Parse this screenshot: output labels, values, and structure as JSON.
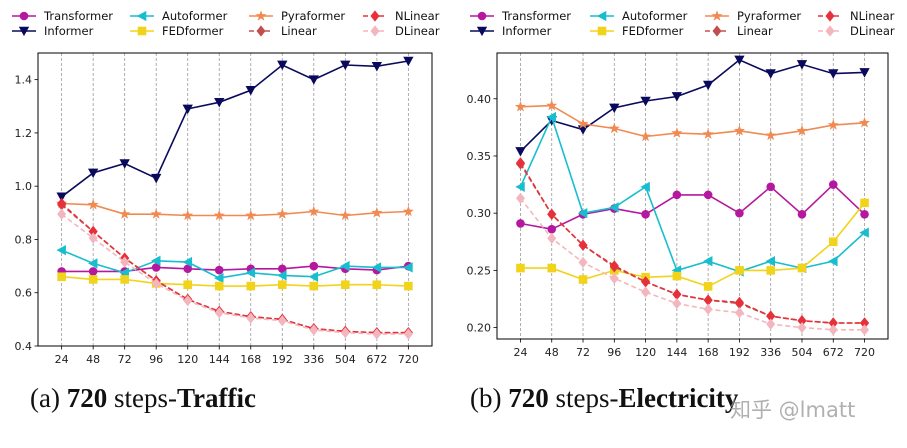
{
  "legend_order": [
    "Transformer",
    "Autoformer",
    "Pyraformer",
    "NLinear",
    "Informer",
    "FEDformer",
    "Linear",
    "DLinear"
  ],
  "styles": {
    "Transformer": {
      "color": "#b5179e",
      "marker": "circle",
      "dash": false
    },
    "Informer": {
      "color": "#0a0a5c",
      "marker": "tri-down",
      "dash": false
    },
    "Autoformer": {
      "color": "#17becf",
      "marker": "tri-left",
      "dash": false
    },
    "FEDformer": {
      "color": "#f2d31b",
      "marker": "square",
      "dash": false
    },
    "Pyraformer": {
      "color": "#f08a52",
      "marker": "star",
      "dash": false
    },
    "Linear": {
      "color": "#c0504d",
      "marker": "diamond",
      "dash": true
    },
    "NLinear": {
      "color": "#e8303a",
      "marker": "diamond",
      "dash": true
    },
    "DLinear": {
      "color": "#f4b6be",
      "marker": "diamond",
      "dash": true
    }
  },
  "chart_data": [
    {
      "type": "line",
      "title": "Traffic",
      "categories": [
        "24",
        "48",
        "72",
        "96",
        "120",
        "144",
        "168",
        "192",
        "336",
        "504",
        "672",
        "720"
      ],
      "ylim": [
        0.4,
        1.5
      ],
      "yticks": [
        "0.4",
        "0.6",
        "0.8",
        "1.0",
        "1.2",
        "1.4"
      ],
      "grid_x": true,
      "series": [
        {
          "name": "Transformer",
          "values": [
            0.68,
            0.68,
            0.68,
            0.695,
            0.69,
            0.685,
            0.69,
            0.69,
            0.7,
            0.69,
            0.685,
            0.7
          ]
        },
        {
          "name": "Informer",
          "values": [
            0.96,
            1.05,
            1.085,
            1.03,
            1.29,
            1.315,
            1.36,
            1.455,
            1.4,
            1.455,
            1.45,
            1.47
          ]
        },
        {
          "name": "Autoformer",
          "values": [
            0.76,
            0.71,
            0.675,
            0.72,
            0.715,
            0.655,
            0.675,
            0.665,
            0.66,
            0.7,
            0.695,
            0.695
          ]
        },
        {
          "name": "FEDformer",
          "values": [
            0.66,
            0.65,
            0.65,
            0.635,
            0.63,
            0.625,
            0.625,
            0.63,
            0.625,
            0.63,
            0.63,
            0.625
          ]
        },
        {
          "name": "Pyraformer",
          "values": [
            0.935,
            0.93,
            0.895,
            0.895,
            0.89,
            0.89,
            0.89,
            0.895,
            0.905,
            0.89,
            0.9,
            0.905
          ]
        },
        {
          "name": "Linear",
          "values": [
            0.93,
            0.83,
            0.73,
            0.645,
            0.575,
            0.53,
            0.51,
            0.5,
            0.465,
            0.455,
            0.45,
            0.45
          ]
        },
        {
          "name": "NLinear",
          "values": [
            0.935,
            0.83,
            0.73,
            0.645,
            0.575,
            0.53,
            0.51,
            0.5,
            0.465,
            0.455,
            0.45,
            0.45
          ]
        },
        {
          "name": "DLinear",
          "values": [
            0.895,
            0.805,
            0.715,
            0.635,
            0.57,
            0.525,
            0.505,
            0.495,
            0.46,
            0.45,
            0.445,
            0.445
          ]
        }
      ]
    },
    {
      "type": "line",
      "title": "Electricity",
      "categories": [
        "24",
        "48",
        "72",
        "96",
        "120",
        "144",
        "168",
        "192",
        "336",
        "504",
        "672",
        "720"
      ],
      "ylim": [
        0.19,
        0.44
      ],
      "yticks": [
        "0.20",
        "0.25",
        "0.30",
        "0.35",
        "0.40"
      ],
      "grid_x": true,
      "series": [
        {
          "name": "Transformer",
          "values": [
            0.291,
            0.286,
            0.299,
            0.304,
            0.299,
            0.316,
            0.316,
            0.3,
            0.323,
            0.299,
            0.325,
            0.299
          ]
        },
        {
          "name": "Informer",
          "values": [
            0.354,
            0.381,
            0.373,
            0.392,
            0.398,
            0.402,
            0.412,
            0.434,
            0.422,
            0.43,
            0.422,
            0.423
          ]
        },
        {
          "name": "Autoformer",
          "values": [
            0.323,
            0.384,
            0.3,
            0.305,
            0.323,
            0.25,
            0.258,
            0.249,
            0.258,
            0.252,
            0.258,
            0.283
          ]
        },
        {
          "name": "FEDformer",
          "values": [
            0.252,
            0.252,
            0.242,
            0.25,
            0.244,
            0.245,
            0.236,
            0.25,
            0.25,
            0.252,
            0.275,
            0.309
          ]
        },
        {
          "name": "Pyraformer",
          "values": [
            0.393,
            0.394,
            0.378,
            0.374,
            0.367,
            0.37,
            0.369,
            0.372,
            0.368,
            0.372,
            0.377,
            0.379
          ]
        },
        {
          "name": "Linear",
          "values": [
            0.343,
            0.299,
            0.272,
            0.253,
            0.24,
            0.229,
            0.224,
            0.221,
            0.21,
            0.206,
            0.204,
            0.204
          ]
        },
        {
          "name": "NLinear",
          "values": [
            0.344,
            0.299,
            0.272,
            0.254,
            0.24,
            0.229,
            0.224,
            0.222,
            0.21,
            0.206,
            0.204,
            0.204
          ]
        },
        {
          "name": "DLinear",
          "values": [
            0.313,
            0.278,
            0.257,
            0.243,
            0.231,
            0.221,
            0.216,
            0.213,
            0.203,
            0.2,
            0.198,
            0.198
          ]
        }
      ]
    }
  ],
  "captions": [
    {
      "tag": "(a)",
      "steps": "720",
      "mid": " steps-",
      "name": "Traffic"
    },
    {
      "tag": "(b)",
      "steps": "720",
      "mid": " steps-",
      "name": "Electricity"
    }
  ],
  "watermark": "知乎 @lmatt"
}
